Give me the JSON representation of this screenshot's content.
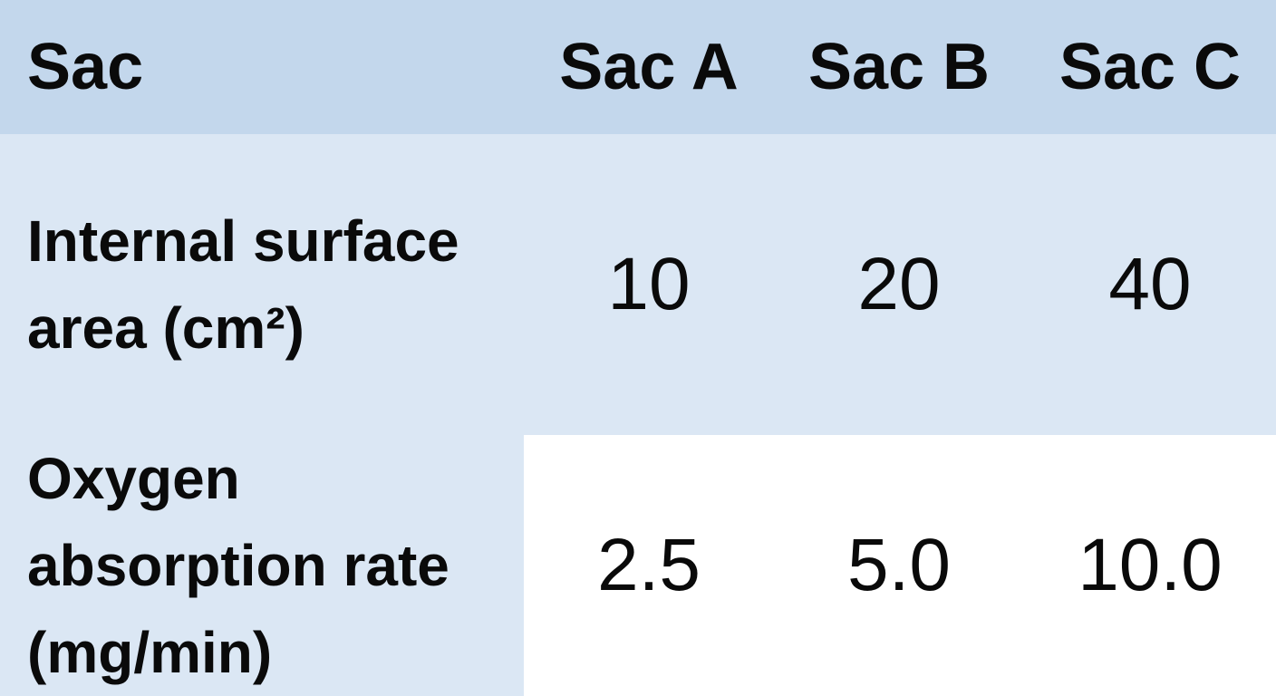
{
  "table": {
    "header": [
      "Sac",
      "Sac A",
      "Sac B",
      "Sac C"
    ],
    "rows": [
      [
        "Internal surface area (cm²)",
        "10",
        "20",
        "40"
      ],
      [
        "Oxygen absorption rate (mg/min)",
        "2.5",
        "5.0",
        "10.0"
      ]
    ]
  }
}
